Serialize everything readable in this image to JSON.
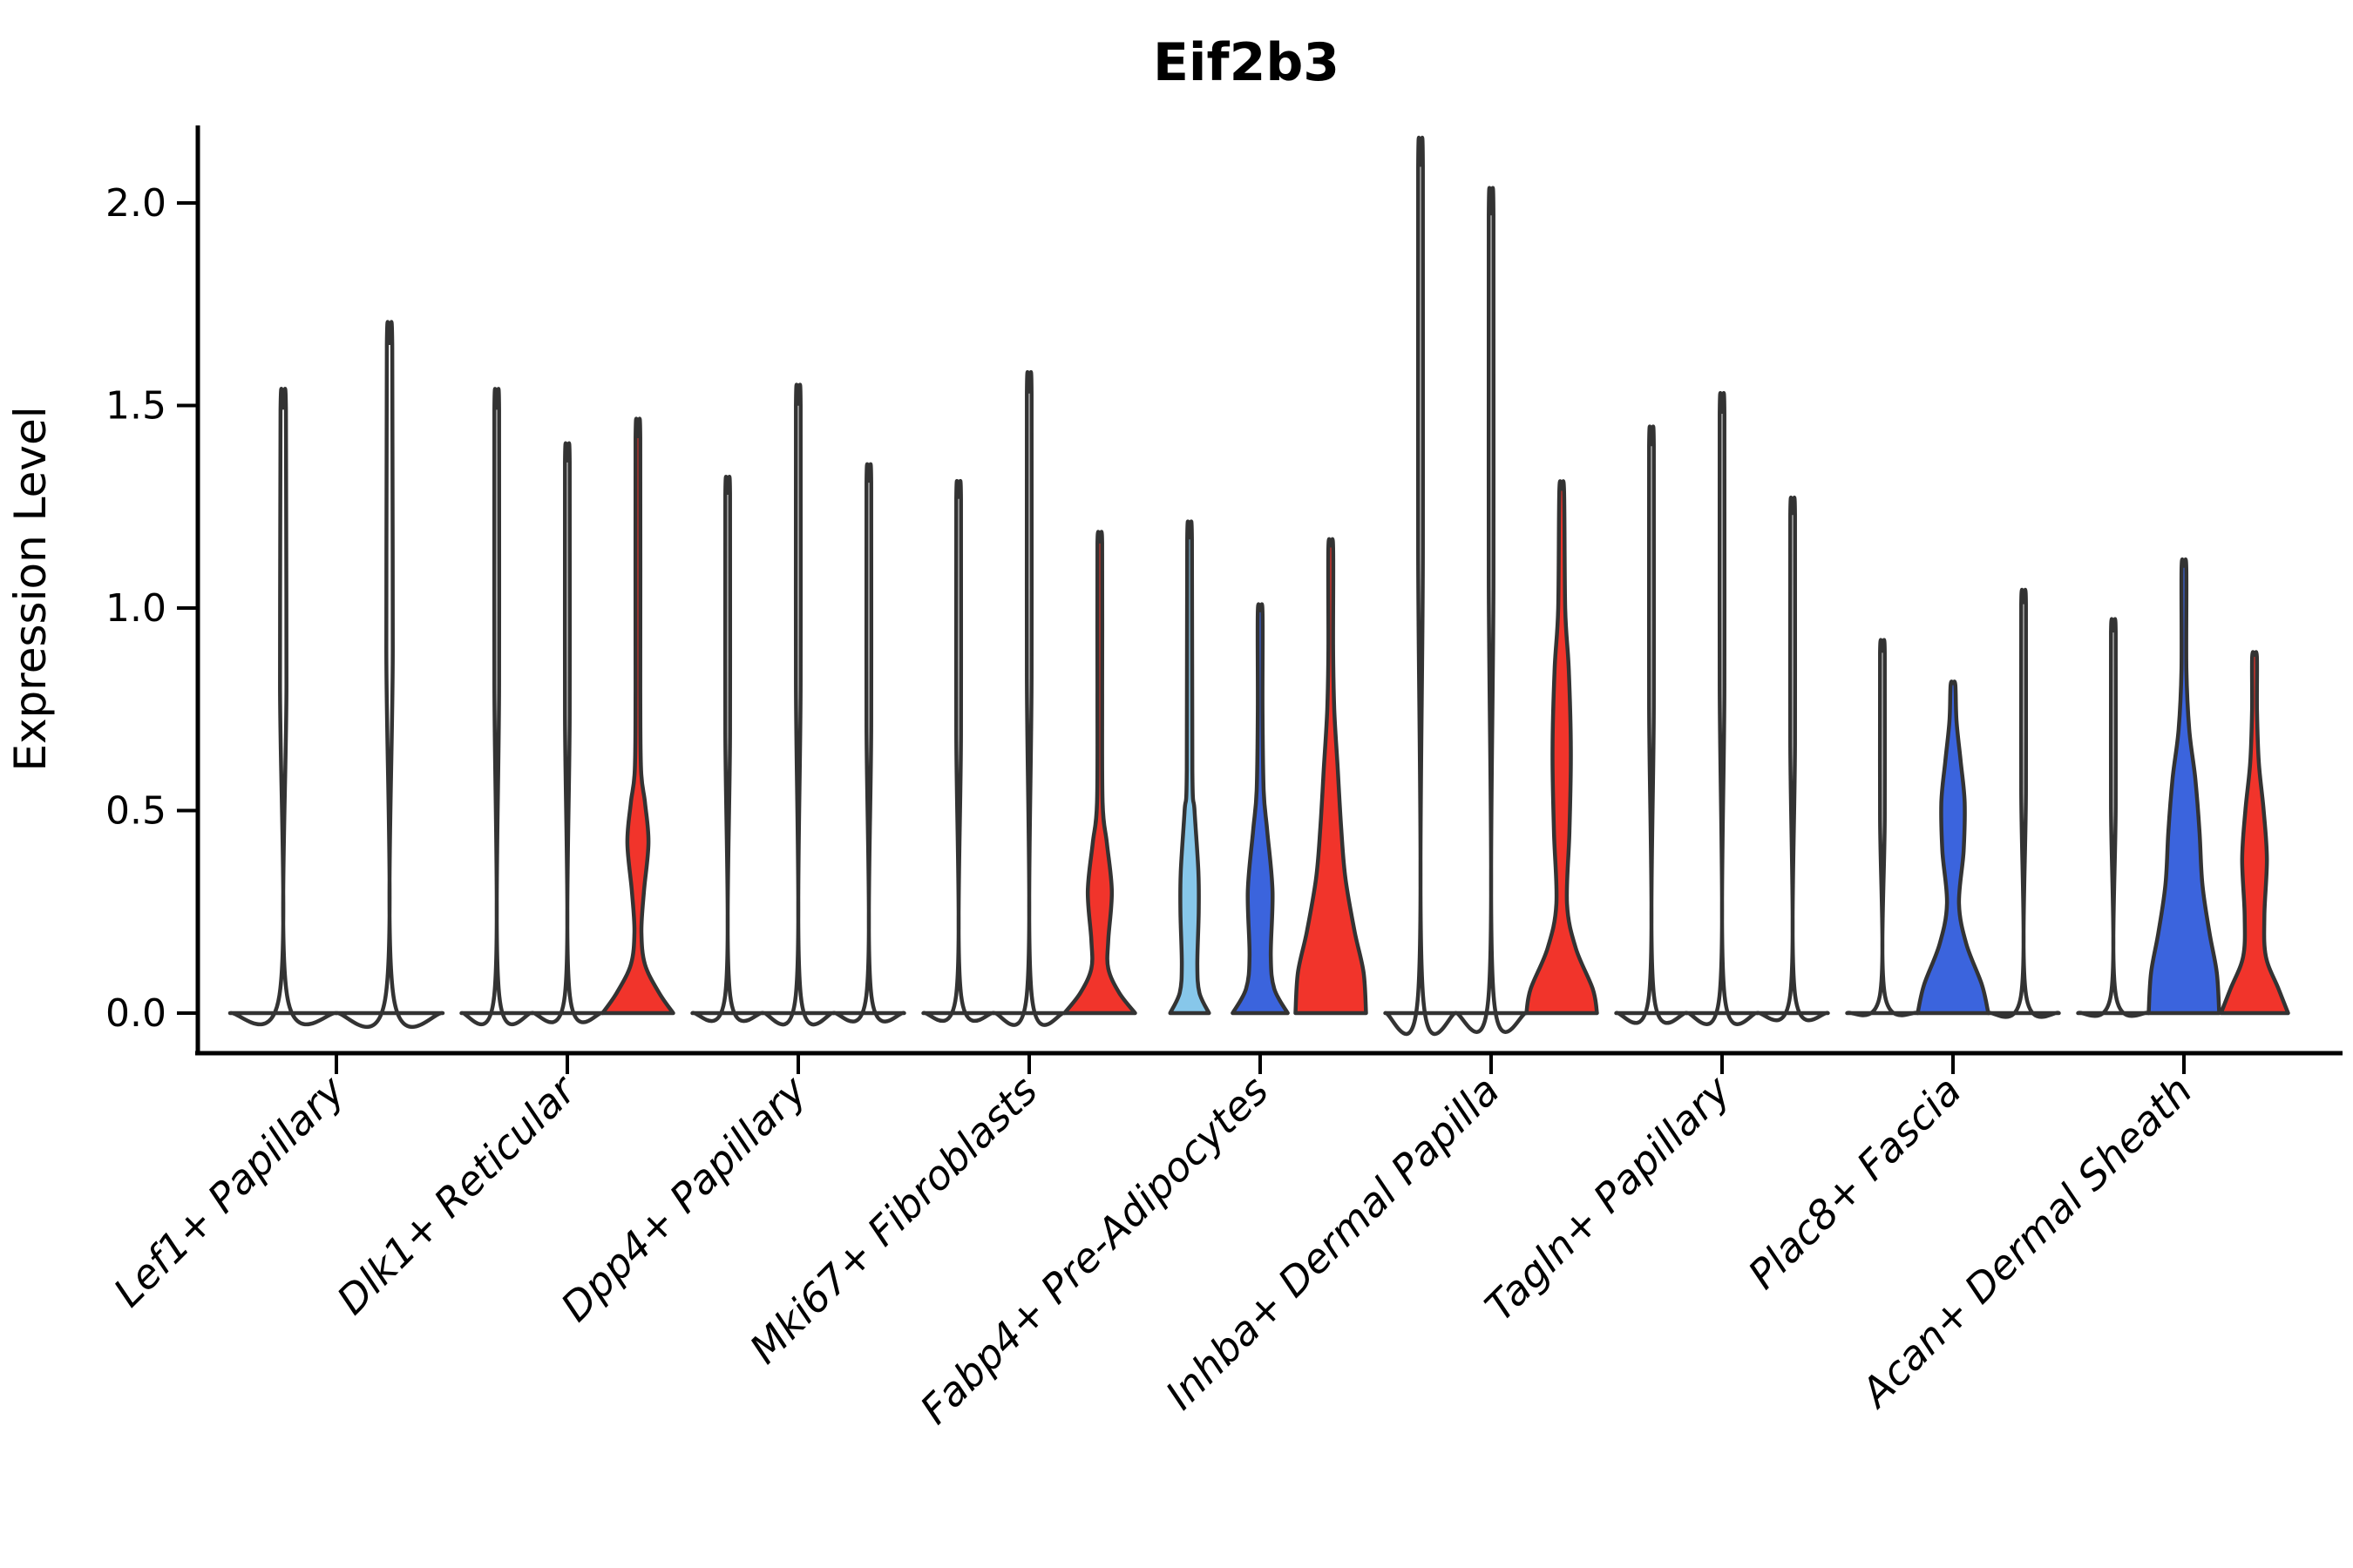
{
  "chart_data": {
    "type": "violin",
    "title": "Eif2b3",
    "ylabel": "Expression Level",
    "xlabel": "",
    "grid": false,
    "legend": "none",
    "ylim": [
      -0.07,
      2.2
    ],
    "yticks": [
      {
        "value": 0.0,
        "label": "0.0"
      },
      {
        "value": 0.5,
        "label": "0.5"
      },
      {
        "value": 1.0,
        "label": "1.0"
      },
      {
        "value": 1.5,
        "label": "1.5"
      },
      {
        "value": 2.0,
        "label": "2.0"
      }
    ],
    "palette": {
      "white": "#ffffff",
      "red": "#f1342b",
      "blue": "#3b64dd",
      "lightblue": "#87c7ea",
      "outline": "#333333",
      "axis": "#000000"
    },
    "categories": [
      "Lef1+ Papillary",
      "Dlk1+ Reticular",
      "Dpp4+ Papillary",
      "Mki67+ Fibroblasts",
      "Fabp4+ Pre-Adipocytes",
      "Inhba+ Dermal Papilla",
      "Tagln+ Papillary",
      "Plac8+ Fascia",
      "Acan+ Dermal Sheath"
    ],
    "groups": [
      {
        "category": "Lef1+ Papillary",
        "violins": [
          {
            "fill": "white",
            "max": 1.49,
            "shape": "spike"
          },
          {
            "fill": "white",
            "max": 1.65,
            "shape": "spike"
          }
        ]
      },
      {
        "category": "Dlk1+ Reticular",
        "violins": [
          {
            "fill": "white",
            "max": 1.49,
            "shape": "spike"
          },
          {
            "fill": "white",
            "max": 1.36,
            "shape": "spike"
          },
          {
            "fill": "red",
            "max": 1.42,
            "shape": "custom",
            "profile": [
              [
                0,
                1
              ],
              [
                0.05,
                0.6
              ],
              [
                0.12,
                0.2
              ],
              [
                0.2,
                0.1
              ],
              [
                0.3,
                0.17
              ],
              [
                0.42,
                0.3
              ],
              [
                0.52,
                0.2
              ],
              [
                0.6,
                0.09
              ],
              [
                0.8,
                0.06
              ],
              [
                1.42,
                0.05
              ]
            ]
          }
        ]
      },
      {
        "category": "Dpp4+ Papillary",
        "violins": [
          {
            "fill": "white",
            "max": 1.28,
            "shape": "spike"
          },
          {
            "fill": "white",
            "max": 1.5,
            "shape": "spike"
          },
          {
            "fill": "white",
            "max": 1.31,
            "shape": "spike"
          }
        ]
      },
      {
        "category": "Mki67+ Fibroblasts",
        "violins": [
          {
            "fill": "white",
            "max": 1.27,
            "shape": "spike"
          },
          {
            "fill": "white",
            "max": 1.53,
            "shape": "spike"
          },
          {
            "fill": "red",
            "max": 1.16,
            "shape": "custom",
            "profile": [
              [
                0,
                1
              ],
              [
                0.05,
                0.55
              ],
              [
                0.11,
                0.24
              ],
              [
                0.18,
                0.24
              ],
              [
                0.3,
                0.34
              ],
              [
                0.42,
                0.2
              ],
              [
                0.52,
                0.08
              ],
              [
                0.8,
                0.06
              ],
              [
                1.16,
                0.05
              ]
            ]
          }
        ]
      },
      {
        "category": "Fabp4+ Pre-Adipocytes",
        "violins": [
          {
            "fill": "lightblue",
            "max": 1.17,
            "shape": "custom",
            "profile": [
              [
                0,
                0.55
              ],
              [
                0.05,
                0.28
              ],
              [
                0.12,
                0.22
              ],
              [
                0.25,
                0.26
              ],
              [
                0.35,
                0.25
              ],
              [
                0.5,
                0.14
              ],
              [
                0.6,
                0.08
              ],
              [
                1.17,
                0.05
              ]
            ]
          },
          {
            "fill": "blue",
            "max": 0.99,
            "shape": "custom",
            "profile": [
              [
                0,
                0.78
              ],
              [
                0.06,
                0.4
              ],
              [
                0.14,
                0.3
              ],
              [
                0.3,
                0.35
              ],
              [
                0.45,
                0.2
              ],
              [
                0.55,
                0.1
              ],
              [
                0.75,
                0.06
              ],
              [
                0.99,
                0.05
              ]
            ]
          },
          {
            "fill": "red",
            "max": 1.15,
            "shape": "custom",
            "profile": [
              [
                0,
                1
              ],
              [
                0.1,
                0.93
              ],
              [
                0.2,
                0.68
              ],
              [
                0.33,
                0.42
              ],
              [
                0.45,
                0.3
              ],
              [
                0.6,
                0.2
              ],
              [
                0.75,
                0.1
              ],
              [
                0.9,
                0.06
              ],
              [
                1.15,
                0.05
              ]
            ]
          }
        ]
      },
      {
        "category": "Inhba+ Dermal Papilla",
        "violins": [
          {
            "fill": "white",
            "max": 2.09,
            "shape": "spike"
          },
          {
            "fill": "white",
            "max": 1.97,
            "shape": "spike"
          },
          {
            "fill": "red",
            "max": 1.29,
            "shape": "custom",
            "profile": [
              [
                0,
                1
              ],
              [
                0.06,
                0.88
              ],
              [
                0.16,
                0.4
              ],
              [
                0.27,
                0.15
              ],
              [
                0.45,
                0.22
              ],
              [
                0.65,
                0.26
              ],
              [
                0.85,
                0.2
              ],
              [
                1.0,
                0.1
              ],
              [
                1.29,
                0.05
              ]
            ]
          }
        ]
      },
      {
        "category": "Tagln+ Papillary",
        "violins": [
          {
            "fill": "white",
            "max": 1.4,
            "shape": "spike"
          },
          {
            "fill": "white",
            "max": 1.48,
            "shape": "spike"
          },
          {
            "fill": "white",
            "max": 1.23,
            "shape": "spike"
          }
        ]
      },
      {
        "category": "Plac8+ Fascia",
        "violins": [
          {
            "fill": "white",
            "max": 0.89,
            "shape": "spike"
          },
          {
            "fill": "blue",
            "max": 0.81,
            "shape": "custom",
            "profile": [
              [
                0,
                1
              ],
              [
                0.07,
                0.82
              ],
              [
                0.17,
                0.38
              ],
              [
                0.27,
                0.17
              ],
              [
                0.4,
                0.3
              ],
              [
                0.52,
                0.33
              ],
              [
                0.62,
                0.22
              ],
              [
                0.72,
                0.1
              ],
              [
                0.81,
                0.06
              ]
            ]
          },
          {
            "fill": "white",
            "max": 1.01,
            "shape": "spike"
          }
        ]
      },
      {
        "category": "Acan+ Dermal Sheath",
        "violins": [
          {
            "fill": "white",
            "max": 0.94,
            "shape": "spike"
          },
          {
            "fill": "blue",
            "max": 1.1,
            "shape": "custom",
            "profile": [
              [
                0,
                1
              ],
              [
                0.1,
                0.93
              ],
              [
                0.2,
                0.72
              ],
              [
                0.32,
                0.52
              ],
              [
                0.45,
                0.44
              ],
              [
                0.58,
                0.32
              ],
              [
                0.7,
                0.15
              ],
              [
                0.85,
                0.07
              ],
              [
                1.1,
                0.05
              ]
            ]
          },
          {
            "fill": "red",
            "max": 0.88,
            "shape": "custom",
            "profile": [
              [
                0,
                0.95
              ],
              [
                0.06,
                0.68
              ],
              [
                0.14,
                0.32
              ],
              [
                0.24,
                0.28
              ],
              [
                0.38,
                0.35
              ],
              [
                0.5,
                0.26
              ],
              [
                0.62,
                0.12
              ],
              [
                0.75,
                0.07
              ],
              [
                0.88,
                0.05
              ]
            ]
          }
        ]
      }
    ]
  }
}
